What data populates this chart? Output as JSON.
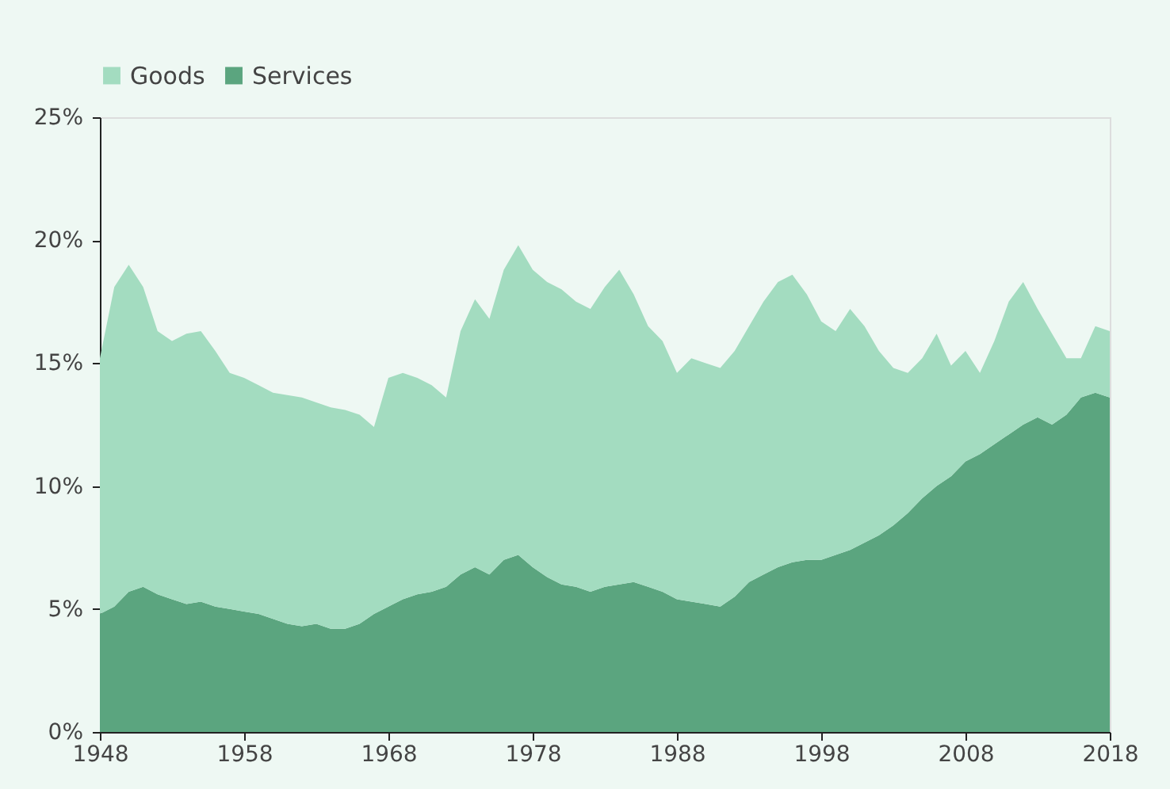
{
  "chart_data": {
    "type": "area",
    "stacked": true,
    "legend": "top",
    "x": [
      1948,
      1949,
      1950,
      1951,
      1952,
      1953,
      1954,
      1955,
      1956,
      1957,
      1958,
      1959,
      1960,
      1961,
      1962,
      1963,
      1964,
      1965,
      1966,
      1967,
      1968,
      1969,
      1970,
      1971,
      1972,
      1973,
      1974,
      1975,
      1976,
      1977,
      1978,
      1979,
      1980,
      1981,
      1982,
      1983,
      1984,
      1985,
      1986,
      1987,
      1988,
      1989,
      1990,
      1991,
      1992,
      1993,
      1994,
      1995,
      1996,
      1997,
      1998,
      1999,
      2000,
      2001,
      2002,
      2003,
      2004,
      2005,
      2006,
      2007,
      2008,
      2009,
      2010,
      2011,
      2012,
      2013,
      2014,
      2015,
      2016,
      2017,
      2018
    ],
    "series": [
      {
        "name": "Services",
        "color": "#5ba57f",
        "values": [
          4.8,
          5.1,
          5.7,
          5.9,
          5.6,
          5.4,
          5.2,
          5.3,
          5.1,
          5.0,
          4.9,
          4.8,
          4.6,
          4.4,
          4.3,
          4.4,
          4.2,
          4.2,
          4.4,
          4.8,
          5.1,
          5.4,
          5.6,
          5.7,
          5.9,
          6.4,
          6.7,
          6.4,
          7.0,
          7.2,
          6.7,
          6.3,
          6.0,
          5.9,
          5.7,
          5.9,
          6.0,
          6.1,
          5.9,
          5.7,
          5.4,
          5.3,
          5.2,
          5.1,
          5.5,
          6.1,
          6.4,
          6.7,
          6.9,
          7.0,
          7.0,
          7.2,
          7.4,
          7.7,
          8.0,
          8.4,
          8.9,
          9.5,
          10.0,
          10.4,
          11.0,
          11.3,
          11.7,
          12.1,
          12.5,
          12.8,
          12.5,
          12.9,
          13.6,
          13.8,
          13.6
        ]
      },
      {
        "name": "Goods",
        "color": "#a3dcc0",
        "values": [
          10.4,
          13.0,
          13.3,
          12.2,
          10.7,
          10.5,
          11.0,
          11.0,
          10.4,
          9.6,
          9.5,
          9.3,
          9.2,
          9.3,
          9.3,
          9.0,
          9.0,
          8.9,
          8.5,
          7.6,
          9.3,
          9.2,
          8.8,
          8.4,
          7.7,
          9.9,
          10.9,
          10.4,
          11.8,
          12.6,
          12.1,
          12.0,
          12.0,
          11.6,
          11.5,
          12.2,
          12.8,
          11.7,
          10.6,
          10.2,
          9.2,
          9.9,
          9.8,
          9.7,
          10.0,
          10.4,
          11.1,
          11.6,
          11.7,
          10.8,
          9.7,
          9.1,
          9.8,
          8.8,
          7.5,
          6.4,
          5.7,
          5.7,
          6.2,
          4.5,
          4.5,
          3.3,
          4.2,
          5.4,
          5.8,
          4.4,
          3.7,
          2.3,
          1.6,
          2.7,
          2.7
        ]
      }
    ],
    "xlim": [
      1948,
      2018
    ],
    "xticks": [
      1948,
      1958,
      1968,
      1978,
      1988,
      1998,
      2008,
      2018
    ],
    "ylim": [
      0,
      25
    ],
    "yticks": [
      {
        "value": 0,
        "label": "0%"
      },
      {
        "value": 5,
        "label": "5%"
      },
      {
        "value": 10,
        "label": "10%"
      },
      {
        "value": 15,
        "label": "15%"
      },
      {
        "value": 20,
        "label": "20%"
      },
      {
        "value": 25,
        "label": "25%"
      }
    ],
    "grid": false
  }
}
